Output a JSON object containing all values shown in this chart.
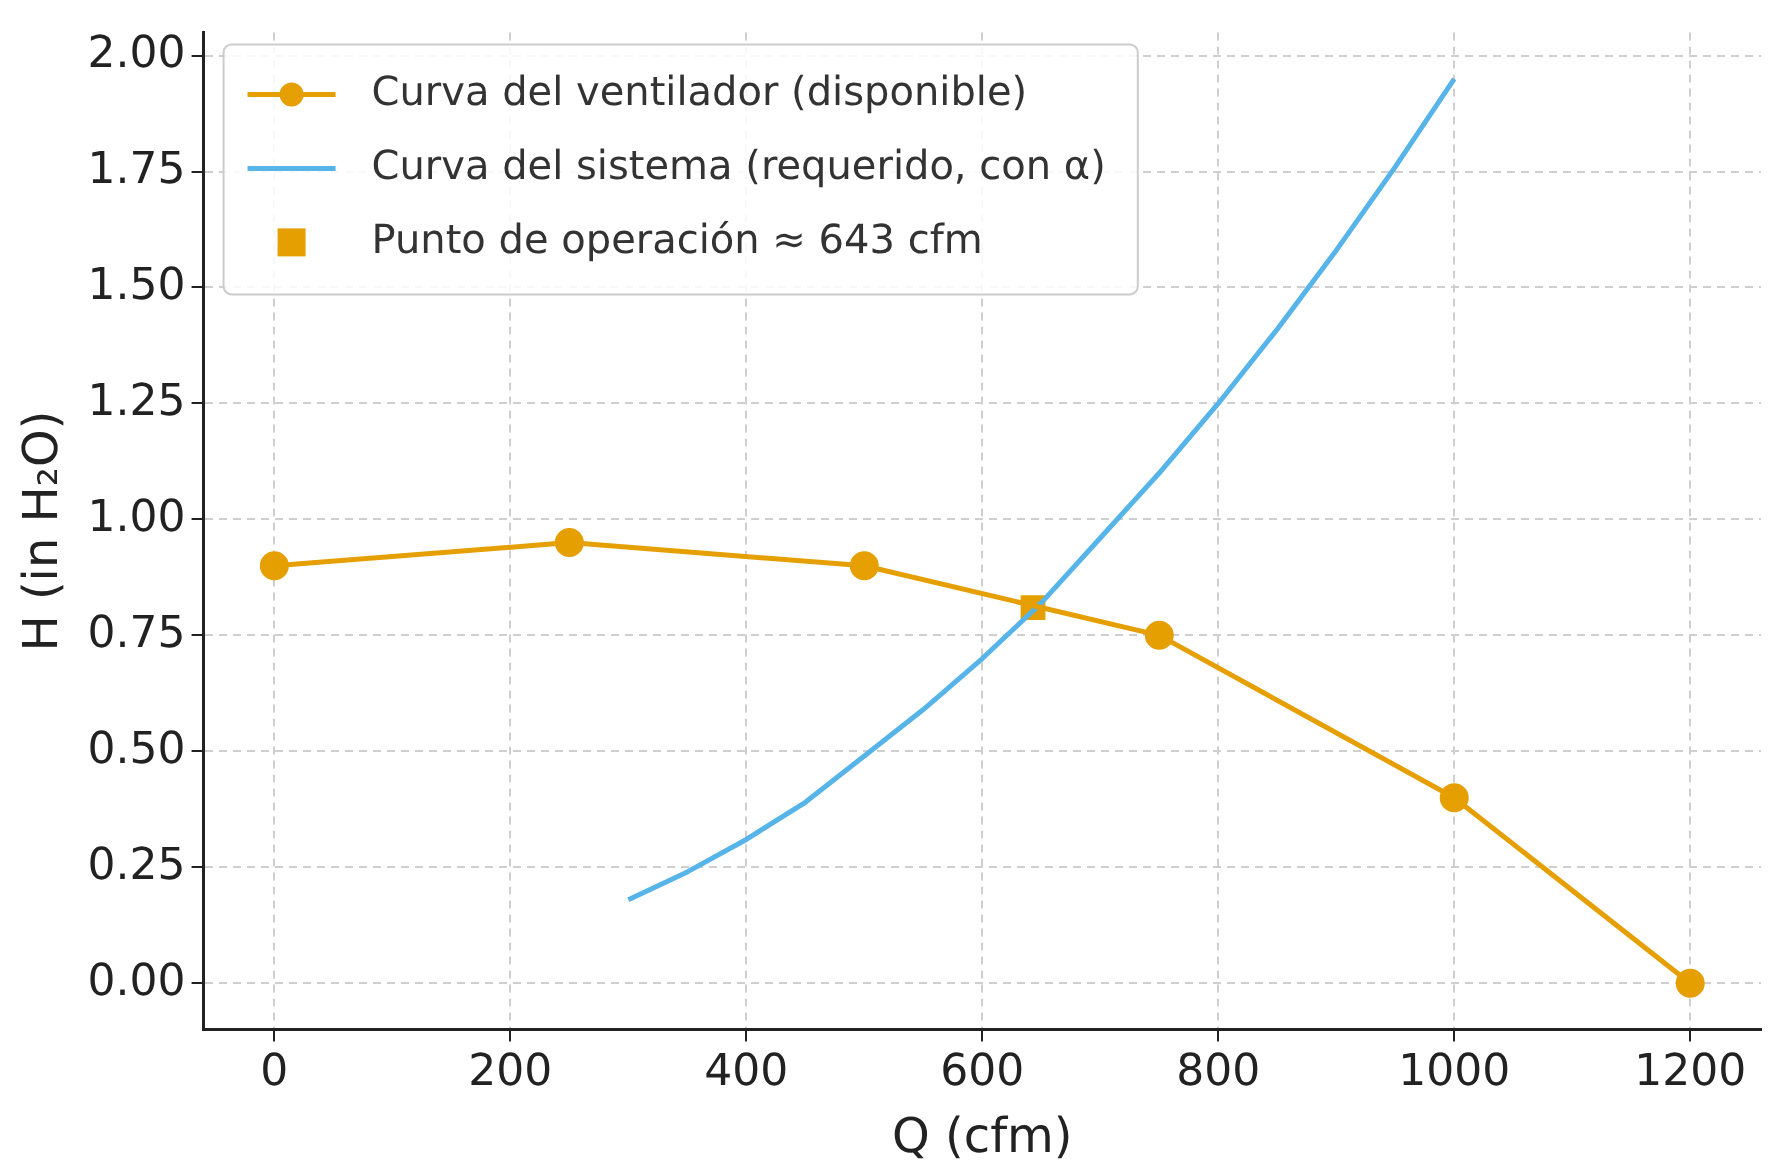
{
  "chart_data": {
    "type": "line",
    "xlabel": "Q (cfm)",
    "ylabel": "H (in H₂O)",
    "xlim": [
      -60,
      1260
    ],
    "ylim": [
      -0.1,
      2.05
    ],
    "xticks": [
      0,
      200,
      400,
      600,
      800,
      1000,
      1200
    ],
    "yticks": [
      {
        "value": 0,
        "label": "0.00"
      },
      {
        "value": 0.25,
        "label": "0.25"
      },
      {
        "value": 0.5,
        "label": "0.50"
      },
      {
        "value": 0.75,
        "label": "0.75"
      },
      {
        "value": 1,
        "label": "1.00"
      },
      {
        "value": 1.25,
        "label": "1.25"
      },
      {
        "value": 1.5,
        "label": "1.50"
      },
      {
        "value": 1.75,
        "label": "1.75"
      },
      {
        "value": 2,
        "label": "2.00"
      }
    ],
    "grid": true,
    "legend": "top left",
    "series": [
      {
        "name": "Curva del ventilador (disponible)",
        "type": "line",
        "marker": "circle",
        "color": "#e69f00",
        "x": [
          0,
          250,
          500,
          750,
          1000,
          1200
        ],
        "values": [
          0.9,
          0.95,
          0.9,
          0.75,
          0.4,
          0
        ]
      },
      {
        "name": "Curva del sistema (requerido, con α)",
        "type": "line",
        "marker": "none",
        "color": "#56b4e9",
        "x": [
          300,
          350,
          400,
          450,
          500,
          550,
          600,
          650,
          700,
          750,
          800,
          850,
          900,
          950,
          1000
        ],
        "values": [
          0.18,
          0.24,
          0.31,
          0.39,
          0.49,
          0.59,
          0.7,
          0.82,
          0.96,
          1.1,
          1.25,
          1.41,
          1.58,
          1.76,
          1.95
        ]
      },
      {
        "name": "Punto de operación ≈ 643 cfm",
        "type": "scatter",
        "marker": "square",
        "color": "#e69f00",
        "x": [
          643
        ],
        "values": [
          0.81
        ]
      }
    ]
  }
}
